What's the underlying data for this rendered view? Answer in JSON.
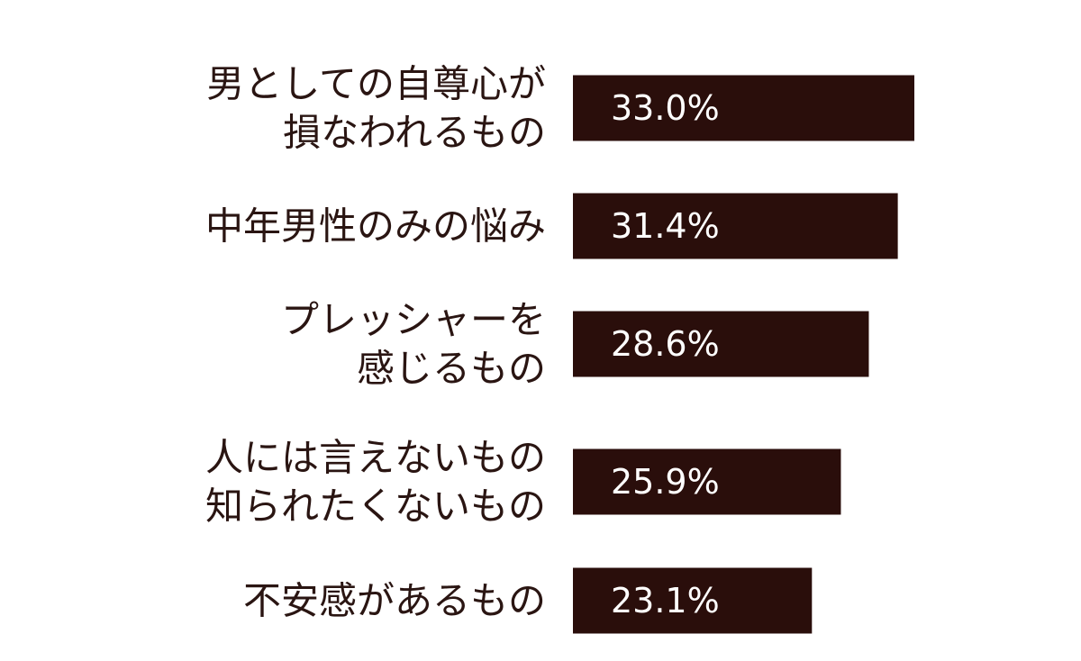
{
  "chart_data": {
    "type": "bar",
    "orientation": "horizontal",
    "categories": [
      [
        "男としての自尊心が",
        "損なわれるもの"
      ],
      [
        "中年男性のみの悩み"
      ],
      [
        "プレッシャーを",
        "感じるもの"
      ],
      [
        "人には言えないもの",
        "知られたくないもの"
      ],
      [
        "不安感があるもの"
      ]
    ],
    "values": [
      33.0,
      31.4,
      28.6,
      25.9,
      23.1
    ],
    "value_labels": [
      "33.0%",
      "31.4%",
      "28.6%",
      "25.9%",
      "23.1%"
    ],
    "unit": "%",
    "xlim": [
      0,
      33.0
    ],
    "grid": false,
    "legend": "none",
    "title": "",
    "xlabel": "",
    "ylabel": ""
  },
  "colors": {
    "bar": "#2a0e0b",
    "label_text": "#2a1512",
    "value_text": "#ffffff",
    "background": "#ffffff"
  }
}
